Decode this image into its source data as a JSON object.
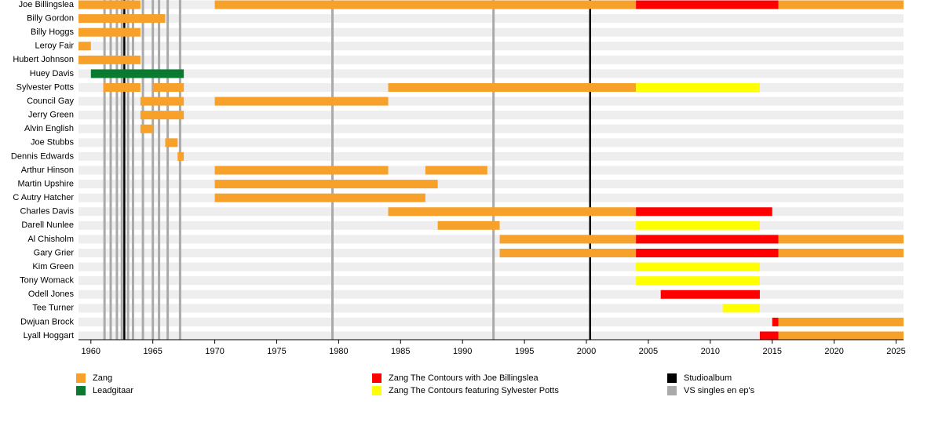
{
  "chart_data": {
    "type": "timeline",
    "xlim": [
      1959,
      2025.6
    ],
    "xticks": [
      1960,
      1965,
      1970,
      1975,
      1980,
      1985,
      1990,
      1995,
      2000,
      2005,
      2010,
      2015,
      2020,
      2025
    ],
    "legend": [
      {
        "name": "Zang",
        "color": "#f7a12b"
      },
      {
        "name": "Leadgitaar",
        "color": "#0a7a30"
      },
      {
        "name": "Zang The Contours with Joe Billingslea",
        "color": "#ff0000"
      },
      {
        "name": "Zang The Contours featuring Sylvester Potts",
        "color": "#ffff00"
      },
      {
        "name": "Studioalbum",
        "color": "#000000"
      },
      {
        "name": "VS singles en ep's",
        "color": "#aaaaaa"
      }
    ],
    "lines": [
      {
        "x": 1961.1,
        "color": "#aaaaaa"
      },
      {
        "x": 1961.6,
        "color": "#aaaaaa"
      },
      {
        "x": 1962.1,
        "color": "#aaaaaa"
      },
      {
        "x": 1962.5,
        "color": "#aaaaaa"
      },
      {
        "x": 1963.0,
        "color": "#aaaaaa"
      },
      {
        "x": 1963.4,
        "color": "#aaaaaa"
      },
      {
        "x": 1964.2,
        "color": "#aaaaaa"
      },
      {
        "x": 1965.0,
        "color": "#aaaaaa"
      },
      {
        "x": 1965.5,
        "color": "#aaaaaa"
      },
      {
        "x": 1966.2,
        "color": "#aaaaaa"
      },
      {
        "x": 1967.2,
        "color": "#aaaaaa"
      },
      {
        "x": 1979.5,
        "color": "#aaaaaa"
      },
      {
        "x": 1992.5,
        "color": "#aaaaaa"
      },
      {
        "x": 1962.7,
        "color": "#000000"
      },
      {
        "x": 2000.3,
        "color": "#000000"
      }
    ],
    "members": [
      {
        "name": "Joe Billingslea",
        "bars": [
          {
            "start": 1959,
            "end": 1964,
            "color": "#f7a12b"
          },
          {
            "start": 1970,
            "end": 2004,
            "color": "#f7a12b"
          },
          {
            "start": 2004,
            "end": 2015.5,
            "color": "#ff0000"
          },
          {
            "start": 2015.5,
            "end": 2025.6,
            "color": "#f7a12b"
          }
        ]
      },
      {
        "name": "Billy Gordon",
        "bars": [
          {
            "start": 1959,
            "end": 1966,
            "color": "#f7a12b"
          }
        ]
      },
      {
        "name": "Billy Hoggs",
        "bars": [
          {
            "start": 1959,
            "end": 1964,
            "color": "#f7a12b"
          }
        ]
      },
      {
        "name": "Leroy Fair",
        "bars": [
          {
            "start": 1959,
            "end": 1960,
            "color": "#f7a12b"
          }
        ]
      },
      {
        "name": "Hubert Johnson",
        "bars": [
          {
            "start": 1959,
            "end": 1964,
            "color": "#f7a12b"
          }
        ]
      },
      {
        "name": "Huey Davis",
        "bars": [
          {
            "start": 1960,
            "end": 1967.5,
            "color": "#0a7a30"
          }
        ]
      },
      {
        "name": "Sylvester Potts",
        "bars": [
          {
            "start": 1961,
            "end": 1964,
            "color": "#f7a12b"
          },
          {
            "start": 1965,
            "end": 1967.5,
            "color": "#f7a12b"
          },
          {
            "start": 1984,
            "end": 2004,
            "color": "#f7a12b"
          },
          {
            "start": 2004,
            "end": 2014,
            "color": "#ffff00"
          }
        ]
      },
      {
        "name": "Council Gay",
        "bars": [
          {
            "start": 1964,
            "end": 1967.5,
            "color": "#f7a12b"
          },
          {
            "start": 1970,
            "end": 1984,
            "color": "#f7a12b"
          }
        ]
      },
      {
        "name": "Jerry Green",
        "bars": [
          {
            "start": 1964,
            "end": 1967.5,
            "color": "#f7a12b"
          }
        ]
      },
      {
        "name": "Alvin English",
        "bars": [
          {
            "start": 1964,
            "end": 1965,
            "color": "#f7a12b"
          }
        ]
      },
      {
        "name": "Joe Stubbs",
        "bars": [
          {
            "start": 1966,
            "end": 1967,
            "color": "#f7a12b"
          }
        ]
      },
      {
        "name": "Dennis Edwards",
        "bars": [
          {
            "start": 1967,
            "end": 1967.5,
            "color": "#f7a12b"
          }
        ]
      },
      {
        "name": "Arthur Hinson",
        "bars": [
          {
            "start": 1970,
            "end": 1984,
            "color": "#f7a12b"
          },
          {
            "start": 1987,
            "end": 1992,
            "color": "#f7a12b"
          }
        ]
      },
      {
        "name": "Martin Upshire",
        "bars": [
          {
            "start": 1970,
            "end": 1988,
            "color": "#f7a12b"
          }
        ]
      },
      {
        "name": "C Autry Hatcher",
        "bars": [
          {
            "start": 1970,
            "end": 1987,
            "color": "#f7a12b"
          }
        ]
      },
      {
        "name": "Charles Davis",
        "bars": [
          {
            "start": 1984,
            "end": 2004,
            "color": "#f7a12b"
          },
          {
            "start": 2004,
            "end": 2015,
            "color": "#ff0000"
          }
        ]
      },
      {
        "name": "Darell Nunlee",
        "bars": [
          {
            "start": 1988,
            "end": 1993,
            "color": "#f7a12b"
          },
          {
            "start": 2004,
            "end": 2014,
            "color": "#ffff00"
          }
        ]
      },
      {
        "name": "Al Chisholm",
        "bars": [
          {
            "start": 1993,
            "end": 2004,
            "color": "#f7a12b"
          },
          {
            "start": 2004,
            "end": 2015.5,
            "color": "#ff0000"
          },
          {
            "start": 2015.5,
            "end": 2025.6,
            "color": "#f7a12b"
          }
        ]
      },
      {
        "name": "Gary Grier",
        "bars": [
          {
            "start": 1993,
            "end": 2004,
            "color": "#f7a12b"
          },
          {
            "start": 2004,
            "end": 2015.5,
            "color": "#ff0000"
          },
          {
            "start": 2015.5,
            "end": 2025.6,
            "color": "#f7a12b"
          }
        ]
      },
      {
        "name": "Kim Green",
        "bars": [
          {
            "start": 2004,
            "end": 2014,
            "color": "#ffff00"
          }
        ]
      },
      {
        "name": "Tony Womack",
        "bars": [
          {
            "start": 2004,
            "end": 2014,
            "color": "#ffff00"
          }
        ]
      },
      {
        "name": "Odell Jones",
        "bars": [
          {
            "start": 2006,
            "end": 2014,
            "color": "#ff0000"
          }
        ]
      },
      {
        "name": "Tee Turner",
        "bars": [
          {
            "start": 2011,
            "end": 2014,
            "color": "#ffff00"
          }
        ]
      },
      {
        "name": "Dwjuan Brock",
        "bars": [
          {
            "start": 2015,
            "end": 2015.5,
            "color": "#ff0000"
          },
          {
            "start": 2015.5,
            "end": 2025.6,
            "color": "#f7a12b"
          }
        ]
      },
      {
        "name": "Lyall Hoggart",
        "bars": [
          {
            "start": 2014,
            "end": 2015.5,
            "color": "#ff0000"
          },
          {
            "start": 2015.5,
            "end": 2025.6,
            "color": "#f7a12b"
          }
        ]
      }
    ]
  }
}
